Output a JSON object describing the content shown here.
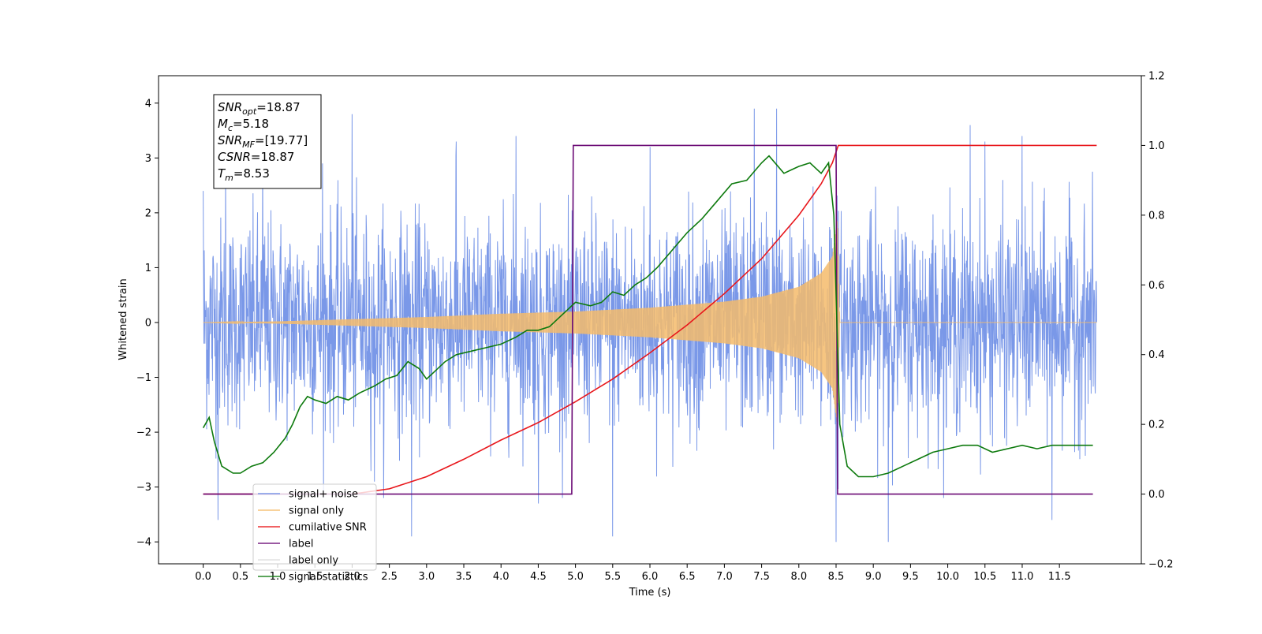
{
  "chart_data": {
    "type": "line",
    "xlabel": "Time (s)",
    "ylabel_left": "Whitened strain",
    "ylabel_right": "",
    "xlim": [
      -0.6,
      12.6
    ],
    "ylim_left": [
      -4.4,
      4.5
    ],
    "ylim_right": [
      -0.2,
      1.2
    ],
    "x_ticks": [
      0.0,
      0.5,
      1.0,
      1.5,
      2.0,
      2.5,
      3.0,
      3.5,
      4.0,
      4.5,
      5.0,
      5.5,
      6.0,
      6.5,
      7.0,
      7.5,
      8.0,
      8.5,
      9.0,
      9.5,
      10.0,
      10.5,
      11.0,
      11.5
    ],
    "x_tick_labels": [
      "0.0",
      "0.5",
      "1.0",
      "1.5",
      "2.0",
      "2.5",
      "3.0",
      "3.5",
      "4.0",
      "4.5",
      "5.0",
      "5.5",
      "6.0",
      "6.5",
      "7.0",
      "7.5",
      "8.0",
      "8.5",
      "9.0",
      "9.5",
      "10.0",
      "10.5",
      "11.0",
      "11.5"
    ],
    "y_ticks_left": [
      -4,
      -3,
      -2,
      -1,
      0,
      1,
      2,
      3,
      4
    ],
    "y_tick_labels_left": [
      "−4",
      "−3",
      "−2",
      "−1",
      "0",
      "1",
      "2",
      "3",
      "4"
    ],
    "y_ticks_right": [
      -0.2,
      0.0,
      0.2,
      0.4,
      0.6,
      0.8,
      1.0,
      1.2
    ],
    "y_tick_labels_right": [
      "−0.2",
      "0.0",
      "0.2",
      "0.4",
      "0.6",
      "0.8",
      "1.0",
      "1.2"
    ],
    "grid": false,
    "legend_position": "lower-left",
    "annotation": {
      "lines": [
        {
          "base": "SNR",
          "sub": "opt",
          "rest": "=18.87"
        },
        {
          "base": "M",
          "sub": "c",
          "rest": "=5.18"
        },
        {
          "base": "SNR",
          "sub": "MF",
          "rest": "=[19.77]"
        },
        {
          "base": "CSNR",
          "sub": "",
          "rest": "=18.87"
        },
        {
          "base": "T",
          "sub": "m",
          "rest": "=8.53"
        }
      ]
    },
    "series": [
      {
        "name": "signal+ noise",
        "color": "#6f8fe6",
        "axis": "left",
        "noise_sigma": 1.05,
        "x_range": [
          0.0,
          12.0
        ],
        "peaks": [
          [
            0.0,
            2.4
          ],
          [
            0.3,
            2.9
          ],
          [
            0.8,
            3.0
          ],
          [
            1.6,
            2.9
          ],
          [
            2.0,
            3.8
          ],
          [
            2.3,
            -2.9
          ],
          [
            2.8,
            -3.9
          ],
          [
            3.4,
            3.3
          ],
          [
            4.2,
            3.4
          ],
          [
            4.5,
            -3.3
          ],
          [
            5.5,
            -3.9
          ],
          [
            6.0,
            3.2
          ],
          [
            7.4,
            3.9
          ],
          [
            7.7,
            3.9
          ],
          [
            8.5,
            -4.0
          ],
          [
            9.2,
            -4.0
          ],
          [
            10.3,
            3.6
          ],
          [
            10.5,
            3.3
          ],
          [
            11.0,
            3.4
          ],
          [
            11.4,
            -3.6
          ],
          [
            0.2,
            -3.6
          ]
        ]
      },
      {
        "name": "signal only",
        "color": "#f5bb6b",
        "axis": "left",
        "envelope": [
          [
            0.0,
            0.0
          ],
          [
            1.0,
            0.02
          ],
          [
            2.0,
            0.06
          ],
          [
            3.0,
            0.1
          ],
          [
            4.0,
            0.16
          ],
          [
            5.0,
            0.2
          ],
          [
            6.0,
            0.27
          ],
          [
            7.0,
            0.38
          ],
          [
            7.5,
            0.47
          ],
          [
            8.0,
            0.65
          ],
          [
            8.3,
            0.9
          ],
          [
            8.45,
            1.2
          ],
          [
            8.52,
            1.9
          ],
          [
            8.55,
            0.0
          ],
          [
            12.0,
            0.0
          ]
        ]
      },
      {
        "name": "cumilative SNR",
        "color": "#e8161b",
        "axis": "right",
        "x": [
          0.0,
          2.0,
          2.5,
          3.0,
          3.5,
          4.0,
          4.5,
          5.0,
          5.5,
          6.0,
          6.5,
          7.0,
          7.5,
          8.0,
          8.3,
          8.45,
          8.53,
          12.0
        ],
        "y": [
          0.0,
          0.0,
          0.015,
          0.05,
          0.1,
          0.155,
          0.205,
          0.265,
          0.33,
          0.405,
          0.485,
          0.575,
          0.675,
          0.8,
          0.89,
          0.95,
          1.0,
          1.0
        ]
      },
      {
        "name": "label",
        "color": "#6b0a75",
        "axis": "right",
        "x": [
          0.0,
          4.95,
          4.97,
          8.5,
          8.52,
          11.95
        ],
        "y": [
          0.0,
          0.0,
          1.0,
          1.0,
          0.0,
          0.0
        ]
      },
      {
        "name": "label only",
        "color": "#e2e2e2",
        "axis": "right",
        "legend_only": true,
        "x": [],
        "y": []
      },
      {
        "name": "signal statistics",
        "color": "#0d7a0d",
        "axis": "right",
        "x": [
          0.0,
          0.08,
          0.15,
          0.25,
          0.4,
          0.5,
          0.65,
          0.8,
          0.95,
          1.1,
          1.2,
          1.3,
          1.4,
          1.5,
          1.65,
          1.8,
          1.95,
          2.1,
          2.3,
          2.45,
          2.6,
          2.75,
          2.9,
          3.0,
          3.1,
          3.25,
          3.4,
          3.6,
          3.8,
          4.0,
          4.2,
          4.35,
          4.5,
          4.65,
          4.8,
          5.0,
          5.2,
          5.35,
          5.5,
          5.65,
          5.8,
          5.95,
          6.1,
          6.3,
          6.5,
          6.7,
          6.9,
          7.1,
          7.3,
          7.5,
          7.6,
          7.8,
          7.9,
          8.0,
          8.15,
          8.3,
          8.4,
          8.47,
          8.55,
          8.65,
          8.8,
          9.0,
          9.2,
          9.4,
          9.6,
          9.8,
          10.0,
          10.2,
          10.4,
          10.6,
          10.8,
          11.0,
          11.2,
          11.4,
          11.6,
          11.8,
          11.95
        ],
        "y": [
          0.19,
          0.22,
          0.15,
          0.08,
          0.06,
          0.06,
          0.08,
          0.09,
          0.12,
          0.16,
          0.2,
          0.25,
          0.28,
          0.27,
          0.26,
          0.28,
          0.27,
          0.29,
          0.31,
          0.33,
          0.34,
          0.38,
          0.36,
          0.33,
          0.35,
          0.38,
          0.4,
          0.41,
          0.42,
          0.43,
          0.45,
          0.47,
          0.47,
          0.48,
          0.51,
          0.55,
          0.54,
          0.55,
          0.58,
          0.57,
          0.6,
          0.62,
          0.65,
          0.7,
          0.75,
          0.79,
          0.84,
          0.89,
          0.9,
          0.95,
          0.97,
          0.92,
          0.93,
          0.94,
          0.95,
          0.92,
          0.95,
          0.8,
          0.2,
          0.08,
          0.05,
          0.05,
          0.06,
          0.08,
          0.1,
          0.12,
          0.13,
          0.14,
          0.14,
          0.12,
          0.13,
          0.14,
          0.13,
          0.14,
          0.14,
          0.14,
          0.14
        ]
      }
    ]
  }
}
